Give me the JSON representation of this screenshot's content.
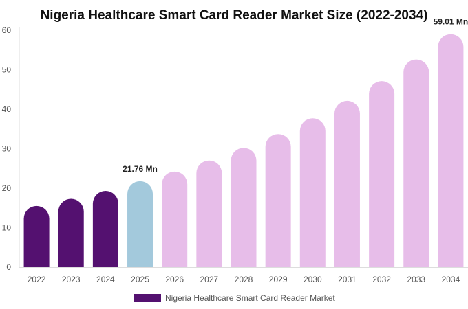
{
  "chart_data": {
    "type": "bar",
    "title": "Nigeria Healthcare Smart Card Reader Market Size (2022-2034)",
    "categories": [
      "2022",
      "2023",
      "2024",
      "2025",
      "2026",
      "2027",
      "2028",
      "2029",
      "2030",
      "2031",
      "2032",
      "2033",
      "2034"
    ],
    "series": [
      {
        "name": "Nigeria Healthcare Smart Card Reader Market",
        "values": [
          15.5,
          17.3,
          19.3,
          21.76,
          24.2,
          27.0,
          30.2,
          33.7,
          37.7,
          42.1,
          47.1,
          52.6,
          59.01
        ]
      }
    ],
    "bar_colors": [
      "#541170",
      "#541170",
      "#541170",
      "#a3c9dc",
      "#e7bde9",
      "#e7bde9",
      "#e7bde9",
      "#e7bde9",
      "#e7bde9",
      "#e7bde9",
      "#e7bde9",
      "#e7bde9",
      "#e7bde9"
    ],
    "data_labels": [
      {
        "index": 3,
        "text": "21.76 Mn"
      },
      {
        "index": 12,
        "text": "59.01 Mn"
      }
    ],
    "ylim": [
      0,
      60
    ],
    "yticks": [
      0,
      10,
      20,
      30,
      40,
      50,
      60
    ],
    "xlabel": "",
    "ylabel": "",
    "grid": false,
    "legend": {
      "position": "bottom",
      "label": "Nigeria Healthcare Smart Card Reader Market",
      "color": "#541170"
    }
  }
}
